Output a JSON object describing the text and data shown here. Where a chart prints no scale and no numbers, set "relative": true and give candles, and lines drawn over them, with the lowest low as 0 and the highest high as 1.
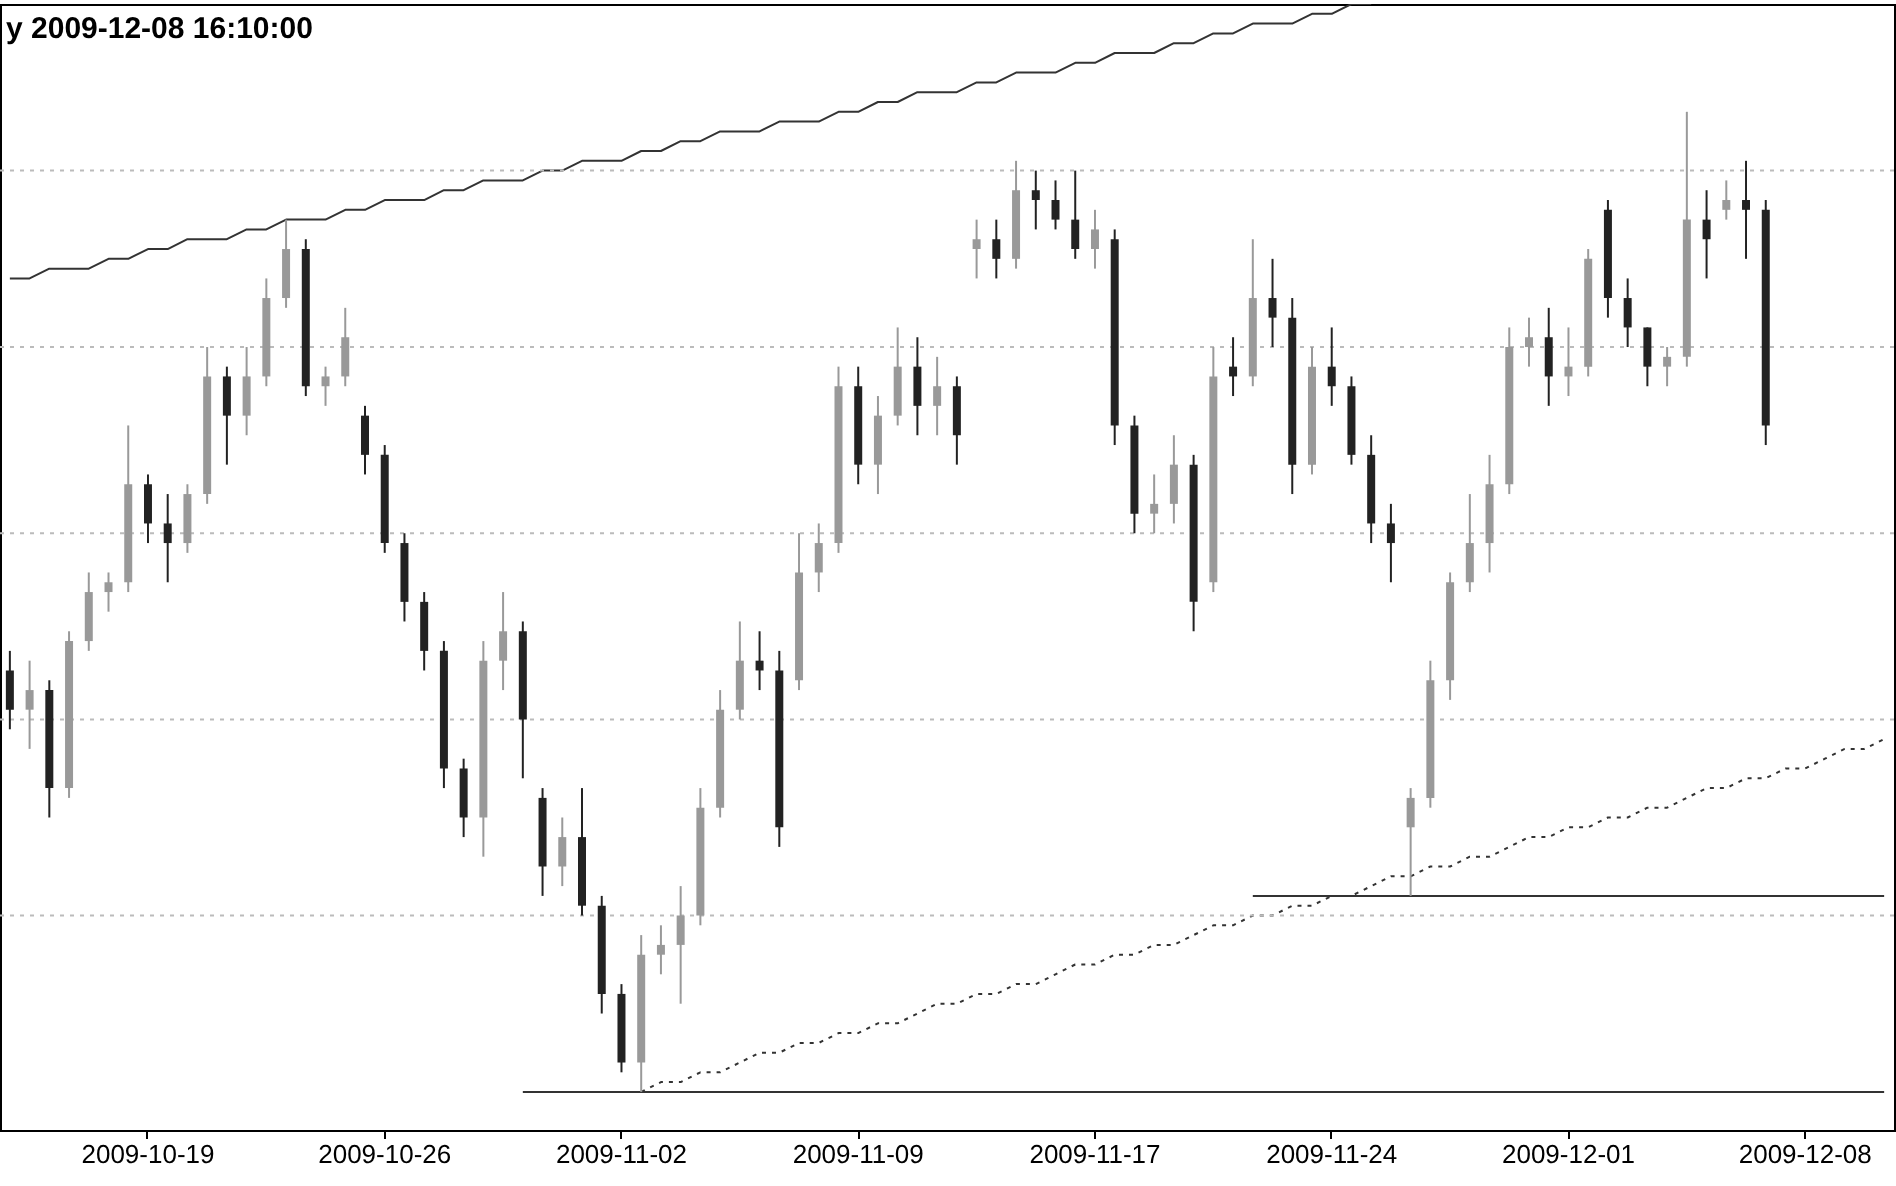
{
  "chart_data": {
    "type": "candlestick",
    "title": "y 2009-12-08 16:10:00",
    "relative": true,
    "colors": [
      "#222222",
      "#999999",
      "#222222",
      "#999999",
      "#999999",
      "#999999",
      "#999999",
      "#222222",
      "#222222",
      "#999999",
      "#999999",
      "#222222",
      "#999999",
      "#999999",
      "#999999",
      "#222222",
      "#999999",
      "#999999",
      "#222222",
      "#222222",
      "#222222",
      "#222222",
      "#222222",
      "#222222",
      "#999999",
      "#999999",
      "#222222",
      "#222222",
      "#999999",
      "#222222",
      "#222222",
      "#222222",
      "#999999",
      "#999999",
      "#999999",
      "#999999",
      "#999999",
      "#999999",
      "#222222",
      "#222222",
      "#999999",
      "#999999",
      "#999999",
      "#222222",
      "#999999",
      "#999999",
      "#222222",
      "#999999",
      "#222222",
      "#999999",
      "#222222",
      "#999999",
      "#222222",
      "#222222",
      "#222222",
      "#999999",
      "#222222",
      "#222222",
      "#999999",
      "#999999",
      "#222222",
      "#999999",
      "#222222",
      "#999999",
      "#222222",
      "#222222",
      "#999999",
      "#222222",
      "#222222",
      "#222222",
      "#222222",
      "#999999",
      "#999999",
      "#999999",
      "#999999",
      "#999999",
      "#999999",
      "#999999",
      "#222222",
      "#999999",
      "#999999",
      "#222222",
      "#222222",
      "#222222",
      "#999999",
      "#999999",
      "#222222",
      "#999999",
      "#222222",
      "#222222",
      null,
      null,
      null,
      null,
      null,
      null
    ],
    "categories": [
      null,
      null,
      null,
      null,
      null,
      null,
      null,
      "2009-10-19",
      null,
      null,
      null,
      null,
      null,
      null,
      null,
      null,
      null,
      null,
      null,
      "2009-10-26",
      null,
      null,
      null,
      null,
      null,
      null,
      null,
      null,
      null,
      null,
      null,
      "2009-11-02",
      null,
      null,
      null,
      null,
      null,
      null,
      null,
      null,
      null,
      null,
      null,
      "2009-11-09",
      null,
      null,
      null,
      null,
      null,
      null,
      null,
      null,
      null,
      null,
      null,
      "2009-11-17",
      null,
      null,
      null,
      null,
      null,
      null,
      null,
      null,
      null,
      null,
      null,
      "2009-11-24",
      null,
      null,
      null,
      null,
      null,
      null,
      null,
      null,
      null,
      null,
      null,
      "2009-12-01",
      null,
      null,
      null,
      null,
      null,
      null,
      null,
      null,
      null,
      null,
      null,
      "2009-12-08",
      null,
      null,
      null,
      null
    ],
    "ohlc": [
      [
        0.43,
        0.45,
        0.37,
        0.39
      ],
      [
        0.39,
        0.44,
        0.35,
        0.41
      ],
      [
        0.41,
        0.42,
        0.28,
        0.31
      ],
      [
        0.31,
        0.47,
        0.3,
        0.46
      ],
      [
        0.46,
        0.53,
        0.45,
        0.51
      ],
      [
        0.51,
        0.53,
        0.49,
        0.52
      ],
      [
        0.52,
        0.68,
        0.51,
        0.62
      ],
      [
        0.62,
        0.63,
        0.56,
        0.58
      ],
      [
        0.58,
        0.61,
        0.52,
        0.56
      ],
      [
        0.56,
        0.62,
        0.55,
        0.61
      ],
      [
        0.61,
        0.76,
        0.6,
        0.73
      ],
      [
        0.73,
        0.74,
        0.64,
        0.69
      ],
      [
        0.69,
        0.76,
        0.67,
        0.73
      ],
      [
        0.73,
        0.83,
        0.72,
        0.81
      ],
      [
        0.81,
        0.89,
        0.8,
        0.86
      ],
      [
        0.86,
        0.87,
        0.71,
        0.72
      ],
      [
        0.72,
        0.74,
        0.7,
        0.73
      ],
      [
        0.73,
        0.8,
        0.72,
        0.77
      ],
      [
        0.69,
        0.7,
        0.63,
        0.65
      ],
      [
        0.65,
        0.66,
        0.55,
        0.56
      ],
      [
        0.56,
        0.57,
        0.48,
        0.5
      ],
      [
        0.5,
        0.51,
        0.43,
        0.45
      ],
      [
        0.45,
        0.46,
        0.31,
        0.33
      ],
      [
        0.33,
        0.34,
        0.26,
        0.28
      ],
      [
        0.28,
        0.46,
        0.24,
        0.44
      ],
      [
        0.44,
        0.51,
        0.41,
        0.47
      ],
      [
        0.47,
        0.48,
        0.32,
        0.38
      ],
      [
        0.3,
        0.31,
        0.2,
        0.23
      ],
      [
        0.23,
        0.28,
        0.21,
        0.26
      ],
      [
        0.26,
        0.31,
        0.18,
        0.19
      ],
      [
        0.19,
        0.2,
        0.08,
        0.1
      ],
      [
        0.1,
        0.11,
        0.02,
        0.03
      ],
      [
        0.03,
        0.16,
        0,
        0.14
      ],
      [
        0.14,
        0.17,
        0.12,
        0.15
      ],
      [
        0.15,
        0.21,
        0.09,
        0.18
      ],
      [
        0.18,
        0.31,
        0.17,
        0.29
      ],
      [
        0.29,
        0.41,
        0.28,
        0.39
      ],
      [
        0.39,
        0.48,
        0.38,
        0.44
      ],
      [
        0.44,
        0.47,
        0.41,
        0.43
      ],
      [
        0.43,
        0.45,
        0.25,
        0.27
      ],
      [
        0.42,
        0.57,
        0.41,
        0.53
      ],
      [
        0.53,
        0.58,
        0.51,
        0.56
      ],
      [
        0.56,
        0.74,
        0.55,
        0.72
      ],
      [
        0.72,
        0.74,
        0.62,
        0.64
      ],
      [
        0.64,
        0.71,
        0.61,
        0.69
      ],
      [
        0.69,
        0.78,
        0.68,
        0.74
      ],
      [
        0.74,
        0.77,
        0.67,
        0.7
      ],
      [
        0.7,
        0.75,
        0.67,
        0.72
      ],
      [
        0.72,
        0.73,
        0.64,
        0.67
      ],
      [
        0.86,
        0.89,
        0.83,
        0.87
      ],
      [
        0.87,
        0.89,
        0.83,
        0.85
      ],
      [
        0.85,
        0.95,
        0.84,
        0.92
      ],
      [
        0.92,
        0.94,
        0.88,
        0.91
      ],
      [
        0.91,
        0.93,
        0.88,
        0.89
      ],
      [
        0.89,
        0.94,
        0.85,
        0.86
      ],
      [
        0.86,
        0.9,
        0.84,
        0.88
      ],
      [
        0.87,
        0.88,
        0.66,
        0.68
      ],
      [
        0.68,
        0.69,
        0.57,
        0.59
      ],
      [
        0.59,
        0.63,
        0.57,
        0.6
      ],
      [
        0.6,
        0.67,
        0.58,
        0.64
      ],
      [
        0.64,
        0.65,
        0.47,
        0.5
      ],
      [
        0.52,
        0.76,
        0.51,
        0.73
      ],
      [
        0.74,
        0.77,
        0.71,
        0.73
      ],
      [
        0.73,
        0.87,
        0.72,
        0.81
      ],
      [
        0.81,
        0.85,
        0.76,
        0.79
      ],
      [
        0.79,
        0.81,
        0.61,
        0.64
      ],
      [
        0.64,
        0.76,
        0.63,
        0.74
      ],
      [
        0.74,
        0.78,
        0.7,
        0.72
      ],
      [
        0.72,
        0.73,
        0.64,
        0.65
      ],
      [
        0.65,
        0.67,
        0.56,
        0.58
      ],
      [
        0.58,
        0.6,
        0.52,
        0.56
      ],
      [
        0.27,
        0.31,
        0.2,
        0.3
      ],
      [
        0.3,
        0.44,
        0.29,
        0.42
      ],
      [
        0.42,
        0.53,
        0.4,
        0.52
      ],
      [
        0.52,
        0.61,
        0.51,
        0.56
      ],
      [
        0.56,
        0.65,
        0.53,
        0.62
      ],
      [
        0.62,
        0.78,
        0.61,
        0.76
      ],
      [
        0.76,
        0.79,
        0.74,
        0.77
      ],
      [
        0.77,
        0.8,
        0.7,
        0.73
      ],
      [
        0.73,
        0.78,
        0.71,
        0.74
      ],
      [
        0.74,
        0.86,
        0.73,
        0.85
      ],
      [
        0.9,
        0.91,
        0.79,
        0.81
      ],
      [
        0.81,
        0.83,
        0.76,
        0.78
      ],
      [
        0.78,
        0.78,
        0.72,
        0.74
      ],
      [
        0.74,
        0.76,
        0.72,
        0.75
      ],
      [
        0.75,
        1.0,
        0.74,
        0.89
      ],
      [
        0.89,
        0.92,
        0.83,
        0.87
      ],
      [
        0.9,
        0.93,
        0.89,
        0.91
      ],
      [
        0.91,
        0.95,
        0.85,
        0.9
      ],
      [
        0.9,
        0.91,
        0.66,
        0.68
      ],
      null,
      null,
      null,
      null,
      null,
      null
    ],
    "series": [
      {
        "type": "line",
        "color": "#333333",
        "line_style": "solid",
        "values": [
          0.83,
          0.83,
          0.84,
          0.84,
          0.84,
          0.85,
          0.85,
          0.86,
          0.86,
          0.87,
          0.87,
          0.87,
          0.88,
          0.88,
          0.89,
          0.89,
          0.89,
          0.9,
          0.9,
          0.91,
          0.91,
          0.91,
          0.92,
          0.92,
          0.93,
          0.93,
          0.93,
          0.94,
          0.94,
          0.95,
          0.95,
          0.95,
          0.96,
          0.96,
          0.97,
          0.97,
          0.98,
          0.98,
          0.98,
          0.99,
          0.99,
          0.99,
          1.0,
          1.0,
          1.01,
          1.01,
          1.02,
          1.02,
          1.02,
          1.03,
          1.03,
          1.04,
          1.04,
          1.04,
          1.05,
          1.05,
          1.06,
          1.06,
          1.06,
          1.07,
          1.07,
          1.08,
          1.08,
          1.09,
          1.09,
          1.09,
          1.1,
          1.1,
          1.11,
          1.11,
          null,
          null,
          null,
          null,
          null,
          null,
          null,
          null,
          null,
          null,
          null,
          null,
          null,
          null,
          null,
          null,
          null,
          null,
          null,
          null,
          null,
          null,
          null,
          null,
          null,
          null
        ]
      },
      {
        "type": "line",
        "color": "#333333",
        "line_style": "dotted",
        "values": [
          null,
          null,
          null,
          null,
          null,
          null,
          null,
          null,
          null,
          null,
          null,
          null,
          null,
          null,
          null,
          null,
          null,
          null,
          null,
          null,
          null,
          null,
          null,
          null,
          null,
          null,
          null,
          null,
          null,
          null,
          null,
          null,
          0.0,
          0.01,
          0.01,
          0.02,
          0.02,
          0.03,
          0.04,
          0.04,
          0.05,
          0.05,
          0.06,
          0.06,
          0.07,
          0.07,
          0.08,
          0.09,
          0.09,
          0.1,
          0.1,
          0.11,
          0.11,
          0.12,
          0.13,
          0.13,
          0.14,
          0.14,
          0.15,
          0.15,
          0.16,
          0.17,
          0.17,
          0.18,
          0.18,
          0.19,
          0.19,
          0.2,
          0.2,
          0.21,
          0.22,
          0.22,
          0.23,
          0.23,
          0.24,
          0.24,
          0.25,
          0.26,
          0.26,
          0.27,
          0.27,
          0.28,
          0.28,
          0.29,
          0.29,
          0.3,
          0.31,
          0.31,
          0.32,
          0.32,
          0.33,
          0.33,
          0.34,
          0.35,
          0.35,
          0.36
        ]
      },
      {
        "type": "line",
        "color": "#333333",
        "line_style": "solid",
        "values": [
          null,
          null,
          null,
          null,
          null,
          null,
          null,
          null,
          null,
          null,
          null,
          null,
          null,
          null,
          null,
          null,
          null,
          null,
          null,
          null,
          null,
          null,
          null,
          null,
          null,
          null,
          0,
          0,
          0,
          0,
          0,
          0,
          0,
          0,
          0,
          0,
          0,
          0,
          0,
          0,
          0,
          0,
          0,
          0,
          0,
          0,
          0,
          0,
          0,
          0,
          0,
          0,
          0,
          0,
          0,
          0,
          0,
          0,
          0,
          0,
          0,
          0,
          0,
          0,
          0,
          0,
          0,
          0,
          0,
          0,
          0,
          0,
          0,
          0,
          0,
          0,
          0,
          0,
          0,
          0,
          0,
          0,
          0,
          0,
          0,
          0,
          0,
          0,
          0,
          0,
          0,
          0,
          0,
          0,
          0,
          0
        ]
      },
      {
        "type": "line",
        "color": "#333333",
        "line_style": "solid",
        "values": [
          null,
          null,
          null,
          null,
          null,
          null,
          null,
          null,
          null,
          null,
          null,
          null,
          null,
          null,
          null,
          null,
          null,
          null,
          null,
          null,
          null,
          null,
          null,
          null,
          null,
          null,
          null,
          null,
          null,
          null,
          null,
          null,
          null,
          null,
          null,
          null,
          null,
          null,
          null,
          null,
          null,
          null,
          null,
          null,
          null,
          null,
          null,
          null,
          null,
          null,
          null,
          null,
          null,
          null,
          null,
          null,
          null,
          null,
          null,
          null,
          null,
          null,
          null,
          0.2,
          0.2,
          0.2,
          0.2,
          0.2,
          0.2,
          0.2,
          0.2,
          0.2,
          0.2,
          0.2,
          0.2,
          0.2,
          0.2,
          0.2,
          0.2,
          0.2,
          0.2,
          0.2,
          0.2,
          0.2,
          0.2,
          0.2,
          0.2,
          0.2,
          0.2,
          0.2,
          0.2,
          0.2,
          0.2,
          0.2,
          0.2,
          0.2
        ]
      }
    ],
    "ref_lines": [
      {
        "axis": "y",
        "value": 0.94,
        "color": "#bbbbbb",
        "line_style": "dotted"
      },
      {
        "axis": "y",
        "value": 0.76,
        "color": "#bbbbbb",
        "line_style": "dotted"
      },
      {
        "axis": "y",
        "value": 0.57,
        "color": "#bbbbbb",
        "line_style": "dotted"
      },
      {
        "axis": "y",
        "value": 0.38,
        "color": "#bbbbbb",
        "line_style": "dotted"
      },
      {
        "axis": "y",
        "value": 0.18,
        "color": "#bbbbbb",
        "line_style": "dotted"
      }
    ]
  }
}
